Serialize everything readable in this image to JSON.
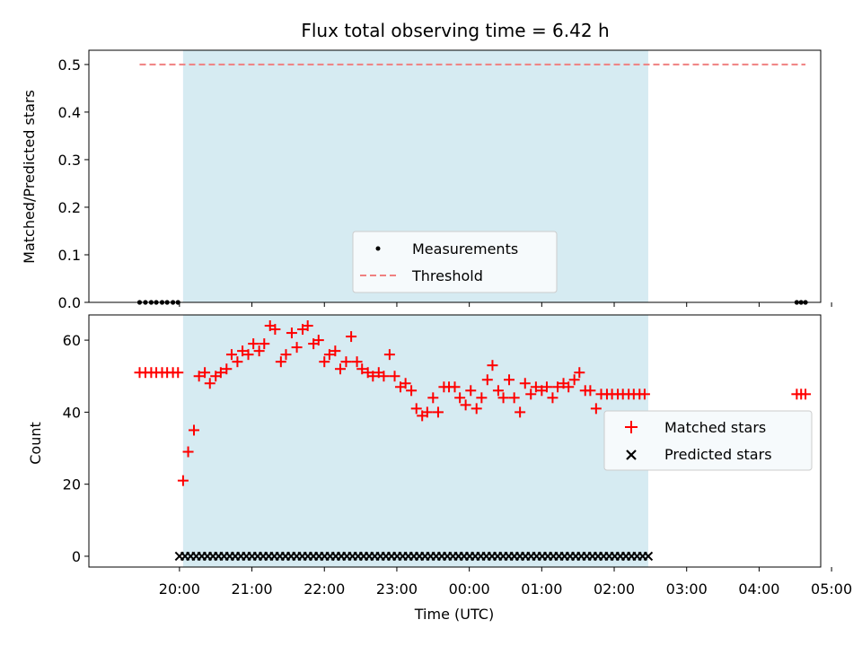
{
  "chart_data": [
    {
      "type": "scatter",
      "title": "Flux total observing time = 6.42 h",
      "xlabel": "",
      "ylabel": "Matched/Predicted stars",
      "ylim": [
        0.0,
        0.53
      ],
      "yticks": [
        "0.0",
        "0.1",
        "0.2",
        "0.3",
        "0.4",
        "0.5"
      ],
      "yticks_values": [
        0.0,
        0.1,
        0.2,
        0.3,
        0.4,
        0.5
      ],
      "xticks_hours": [
        20,
        21,
        22,
        23,
        24,
        25,
        26,
        27,
        28,
        29
      ],
      "xlim_hours": [
        18.75,
        28.85
      ],
      "shaded_region_hours": [
        20.05,
        26.47
      ],
      "legend": {
        "placement": "lower-center",
        "entries": [
          "Measurements",
          "Threshold"
        ]
      },
      "series": [
        {
          "name": "Measurements",
          "marker": "dot",
          "color": "#000000",
          "x_hours": [
            19.45,
            19.53,
            19.61,
            19.68,
            19.76,
            19.83,
            19.91,
            19.98,
            28.52,
            28.58,
            28.64
          ],
          "y": [
            0,
            0,
            0,
            0,
            0,
            0,
            0,
            0,
            0,
            0,
            0
          ]
        },
        {
          "name": "Threshold",
          "line": "dashed",
          "color": "#f08080",
          "x_hours": [
            19.45,
            28.64
          ],
          "y": [
            0.5,
            0.5
          ]
        }
      ]
    },
    {
      "type": "scatter",
      "title": "",
      "xlabel": "Time (UTC)",
      "ylabel": "Count",
      "ylim": [
        -3,
        67
      ],
      "yticks": [
        "0",
        "20",
        "40",
        "60"
      ],
      "yticks_values": [
        0,
        20,
        40,
        60
      ],
      "xticks": [
        "20:00",
        "21:00",
        "22:00",
        "23:00",
        "00:00",
        "01:00",
        "02:00",
        "03:00",
        "04:00",
        "05:00"
      ],
      "xticks_hours": [
        20,
        21,
        22,
        23,
        24,
        25,
        26,
        27,
        28,
        29
      ],
      "xlim_hours": [
        18.75,
        28.85
      ],
      "shaded_region_hours": [
        20.05,
        26.47
      ],
      "legend": {
        "placement": "center-right",
        "entries": [
          "Matched stars",
          "Predicted stars"
        ]
      },
      "series": [
        {
          "name": "Matched stars",
          "marker": "plus",
          "color": "#ff0000",
          "x_hours": [
            19.45,
            19.53,
            19.61,
            19.68,
            19.76,
            19.83,
            19.91,
            19.98,
            20.05,
            20.12,
            20.2,
            20.27,
            20.35,
            20.42,
            20.5,
            20.57,
            20.65,
            20.72,
            20.8,
            20.87,
            20.95,
            21.02,
            21.1,
            21.17,
            21.25,
            21.32,
            21.4,
            21.47,
            21.55,
            21.62,
            21.7,
            21.77,
            21.85,
            21.92,
            22.0,
            22.07,
            22.15,
            22.22,
            22.3,
            22.37,
            22.45,
            22.52,
            22.6,
            22.67,
            22.75,
            22.82,
            22.9,
            22.97,
            23.05,
            23.12,
            23.2,
            23.27,
            23.35,
            23.42,
            23.5,
            23.57,
            23.65,
            23.72,
            23.8,
            23.87,
            23.95,
            24.02,
            24.1,
            24.17,
            24.25,
            24.32,
            24.4,
            24.47,
            24.55,
            24.62,
            24.7,
            24.77,
            24.85,
            24.92,
            25.0,
            25.07,
            25.15,
            25.22,
            25.3,
            25.37,
            25.45,
            25.52,
            25.6,
            25.67,
            25.75,
            25.82,
            25.9,
            25.97,
            26.05,
            26.12,
            26.2,
            26.27,
            26.35,
            26.42,
            28.52,
            28.58,
            28.64
          ],
          "y": [
            51,
            51,
            51,
            51,
            51,
            51,
            51,
            51,
            21,
            29,
            35,
            50,
            51,
            48,
            50,
            51,
            52,
            56,
            54,
            57,
            56,
            59,
            57,
            59,
            64,
            63,
            54,
            56,
            62,
            58,
            63,
            64,
            59,
            60,
            54,
            56,
            57,
            52,
            54,
            61,
            54,
            52,
            51,
            50,
            51,
            50,
            56,
            50,
            47,
            48,
            46,
            41,
            39,
            40,
            44,
            40,
            47,
            47,
            47,
            44,
            42,
            46,
            41,
            44,
            49,
            53,
            46,
            44,
            49,
            44,
            40,
            48,
            45,
            47,
            46,
            47,
            44,
            47,
            48,
            47,
            49,
            51,
            46,
            46,
            41,
            45,
            45,
            45,
            45,
            45,
            45,
            45,
            45,
            45,
            45,
            45,
            45
          ]
        },
        {
          "name": "Predicted stars",
          "marker": "x",
          "color": "#000000",
          "x_start_hours": 20.0,
          "x_end_hours": 26.47,
          "count": 85,
          "y_value": 0
        }
      ]
    }
  ]
}
